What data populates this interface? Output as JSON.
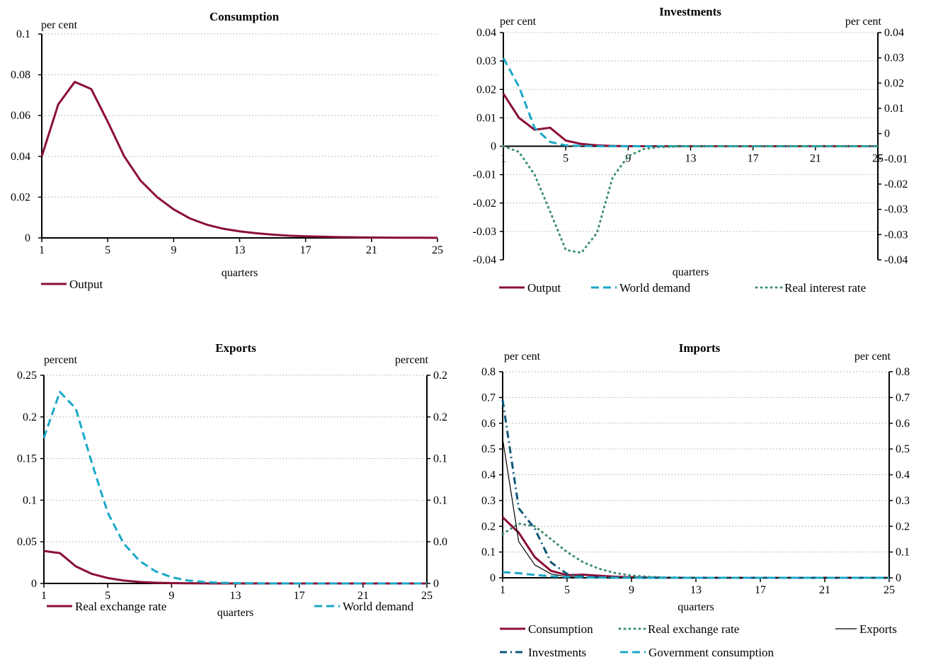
{
  "colors": {
    "maroon": "#8b0f36",
    "cyan": "#1aa8c8",
    "green": "#3f8f72",
    "navy": "#0e5678",
    "black": "#000000"
  },
  "chart_data": [
    {
      "id": "consumption",
      "type": "line",
      "title": "Consumption",
      "xlabel": "quarters",
      "left_unit": "per cent",
      "right_unit": "",
      "x": [
        1,
        2,
        3,
        4,
        5,
        6,
        7,
        8,
        9,
        10,
        11,
        12,
        13,
        14,
        15,
        16,
        17,
        18,
        19,
        20,
        21,
        22,
        23,
        24,
        25
      ],
      "x_ticks": [
        "1",
        "5",
        "9",
        "13",
        "17",
        "21",
        "25"
      ],
      "y_left_ticks": [
        "0",
        "0.02",
        "0.04",
        "0.06",
        "0.08",
        "0.1"
      ],
      "y_left_range": [
        0,
        0.1
      ],
      "y_right_ticks": [],
      "grid": true,
      "legend_position": "bottom-left",
      "series": [
        {
          "name": "Output",
          "color": "maroon",
          "style": "solid",
          "width": 3,
          "values": [
            0.04,
            0.0655,
            0.0765,
            0.073,
            0.057,
            0.04,
            0.028,
            0.02,
            0.014,
            0.0095,
            0.0065,
            0.0045,
            0.0032,
            0.0023,
            0.0016,
            0.0011,
            0.0008,
            0.0006,
            0.0004,
            0.0003,
            0.0002,
            0.00015,
            0.0001,
            8e-05,
            5e-05
          ]
        }
      ]
    },
    {
      "id": "investments",
      "type": "line",
      "title": "Investments",
      "xlabel": "quarters",
      "left_unit": "per cent",
      "right_unit": "per cent",
      "x": [
        1,
        2,
        3,
        4,
        5,
        6,
        7,
        8,
        9,
        10,
        11,
        12,
        13,
        14,
        15,
        16,
        17,
        18,
        19,
        20,
        21,
        22,
        23,
        24,
        25
      ],
      "x_ticks": [
        "1",
        "5",
        "9",
        "13",
        "17",
        "21",
        "25"
      ],
      "y_left_ticks": [
        "-0.04",
        "-0.03",
        "-0.02",
        "-0.01",
        "0",
        "0.01",
        "0.02",
        "0.03",
        "0.04"
      ],
      "y_left_range": [
        -0.04,
        0.04
      ],
      "y_right_ticks": [
        "-0.04",
        "-0.03",
        "-0.03",
        "-0.02",
        "-0.01",
        "0",
        "0.01",
        "0.02",
        "0.03",
        "0.04"
      ],
      "grid": true,
      "legend_position": "bottom",
      "series": [
        {
          "name": "Output",
          "color": "maroon",
          "style": "solid",
          "width": 3,
          "axis": "left",
          "values": [
            0.0185,
            0.01,
            0.0058,
            0.0065,
            0.002,
            0.0008,
            0.0003,
            0.0001,
            0,
            0,
            0,
            0,
            0,
            0,
            0,
            0,
            0,
            0,
            0,
            0,
            0,
            0,
            0,
            0,
            0
          ]
        },
        {
          "name": "World demand",
          "color": "cyan",
          "style": "dashed",
          "width": 3,
          "axis": "left",
          "values": [
            0.031,
            0.021,
            0.0065,
            0.0015,
            0.0003,
            0.0001,
            0,
            0,
            0,
            0,
            0,
            0,
            0,
            0,
            0,
            0,
            0,
            0,
            0,
            0,
            0,
            0,
            0,
            0,
            0
          ]
        },
        {
          "name": "Real interest rate",
          "color": "green",
          "style": "dotted",
          "width": 3,
          "axis": "left",
          "values": [
            0,
            -0.002,
            -0.01,
            -0.023,
            -0.0365,
            -0.0375,
            -0.0305,
            -0.011,
            -0.0035,
            -0.001,
            -0.0003,
            -0.0001,
            0,
            0,
            0,
            0,
            0,
            0,
            0,
            0,
            0,
            0,
            0,
            0,
            0
          ]
        }
      ]
    },
    {
      "id": "exports",
      "type": "line",
      "title": "Exports",
      "xlabel": "quarters",
      "left_unit": "percent",
      "right_unit": "percent",
      "x": [
        1,
        2,
        3,
        4,
        5,
        6,
        7,
        8,
        9,
        10,
        11,
        12,
        13,
        14,
        15,
        16,
        17,
        18,
        19,
        20,
        21,
        22,
        23,
        24,
        25
      ],
      "x_ticks": [
        "1",
        "5",
        "9",
        "13",
        "17",
        "21",
        "25"
      ],
      "y_left_ticks": [
        "0",
        "0.05",
        "0.1",
        "0.15",
        "0.2",
        "0.25"
      ],
      "y_left_range": [
        0,
        0.25
      ],
      "y_right_ticks": [
        "0",
        "0.0",
        "0.1",
        "0.1",
        "0.2",
        "0.2"
      ],
      "grid": true,
      "legend_position": "bottom",
      "series": [
        {
          "name": "Real exchange rate",
          "color": "maroon",
          "style": "solid",
          "width": 3,
          "axis": "left",
          "values": [
            0.039,
            0.0365,
            0.0205,
            0.0115,
            0.0065,
            0.0035,
            0.0018,
            0.0009,
            0.0004,
            0.0002,
            0.0001,
            0,
            0,
            0,
            0,
            0,
            0,
            0,
            0,
            0,
            0,
            0,
            0,
            0,
            0
          ]
        },
        {
          "name": "World demand",
          "color": "cyan",
          "style": "dashed",
          "width": 3,
          "axis": "left",
          "values": [
            0.175,
            0.23,
            0.21,
            0.145,
            0.085,
            0.048,
            0.027,
            0.0145,
            0.0075,
            0.0036,
            0.0018,
            0.0009,
            0.0004,
            0.0002,
            0.0001,
            0,
            0,
            0,
            0,
            0,
            0,
            0,
            0,
            0,
            0
          ]
        }
      ]
    },
    {
      "id": "imports",
      "type": "line",
      "title": "Imports",
      "xlabel": "quarters",
      "left_unit": "per cent",
      "right_unit": "per cent",
      "x": [
        1,
        2,
        3,
        4,
        5,
        6,
        7,
        8,
        9,
        10,
        11,
        12,
        13,
        14,
        15,
        16,
        17,
        18,
        19,
        20,
        21,
        22,
        23,
        24,
        25
      ],
      "x_ticks": [
        "1",
        "5",
        "9",
        "13",
        "17",
        "21",
        "25"
      ],
      "y_left_ticks": [
        "0",
        "0.1",
        "0.2",
        "0.3",
        "0.4",
        "0.5",
        "0.6",
        "0.7",
        "0.8"
      ],
      "y_left_range": [
        0,
        0.8
      ],
      "y_right_ticks": [
        "0",
        "0.1",
        "0.2",
        "0.3",
        "0.4",
        "0.5",
        "0.6",
        "0.7",
        "0.8"
      ],
      "grid": true,
      "legend_position": "bottom",
      "series": [
        {
          "name": "Consumption",
          "color": "maroon",
          "style": "solid",
          "width": 3,
          "axis": "left",
          "values": [
            0.235,
            0.175,
            0.08,
            0.027,
            0.01,
            0.012,
            0.008,
            0.004,
            0.002,
            0.001,
            0.0005,
            0,
            0,
            0,
            0,
            0,
            0,
            0,
            0,
            0,
            0,
            0,
            0,
            0,
            0
          ]
        },
        {
          "name": "Real exchange rate",
          "color": "green",
          "style": "dotted",
          "width": 3,
          "axis": "left",
          "values": [
            0.17,
            0.21,
            0.2,
            0.15,
            0.1,
            0.06,
            0.035,
            0.018,
            0.009,
            0.004,
            0.002,
            0.001,
            0,
            0,
            0,
            0,
            0,
            0,
            0,
            0,
            0,
            0,
            0,
            0,
            0
          ]
        },
        {
          "name": "Exports",
          "color": "black",
          "style": "solid",
          "width": 1.2,
          "axis": "left",
          "values": [
            0.54,
            0.14,
            0.05,
            0.015,
            0.004,
            0.001,
            0,
            0,
            0,
            0,
            0,
            0,
            0,
            0,
            0,
            0,
            0,
            0,
            0,
            0,
            0,
            0,
            0,
            0,
            0
          ]
        },
        {
          "name": "Investments",
          "color": "navy",
          "style": "dashdot",
          "width": 3,
          "axis": "left",
          "values": [
            0.69,
            0.27,
            0.19,
            0.06,
            0.015,
            0.004,
            0.001,
            0,
            0,
            0,
            0,
            0,
            0,
            0,
            0,
            0,
            0,
            0,
            0,
            0,
            0,
            0,
            0,
            0,
            0
          ]
        },
        {
          "name": "Government consumption",
          "color": "cyan",
          "style": "dashed",
          "width": 3,
          "axis": "left",
          "values": [
            0.022,
            0.018,
            0.011,
            0.006,
            0.0035,
            0.002,
            0.001,
            0.0005,
            0,
            0,
            0,
            0,
            0,
            0,
            0,
            0,
            0,
            0,
            0,
            0,
            0,
            0,
            0,
            0,
            0
          ]
        }
      ]
    }
  ]
}
